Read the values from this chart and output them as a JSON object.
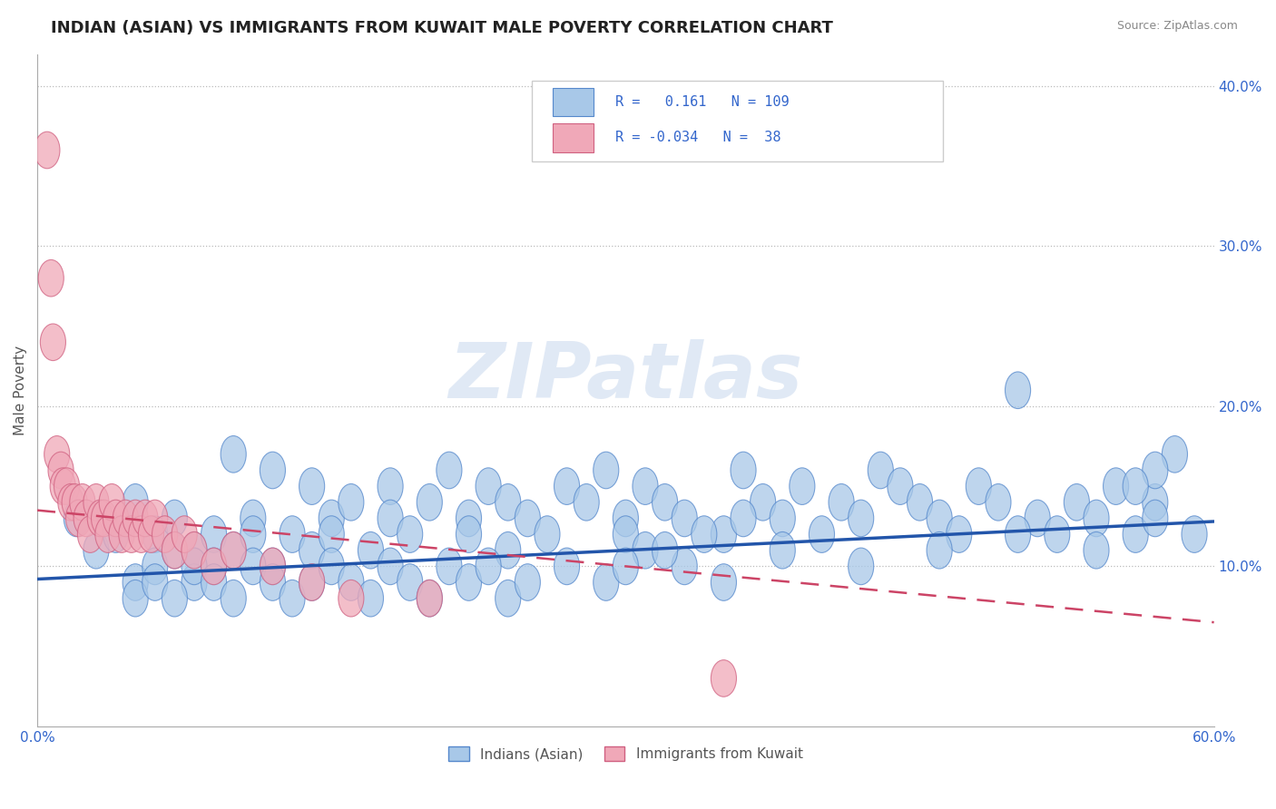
{
  "title": "INDIAN (ASIAN) VS IMMIGRANTS FROM KUWAIT MALE POVERTY CORRELATION CHART",
  "source": "Source: ZipAtlas.com",
  "ylabel": "Male Poverty",
  "xlim": [
    0.0,
    0.6
  ],
  "ylim": [
    0.0,
    0.42
  ],
  "xticks": [
    0.0,
    0.06,
    0.12,
    0.18,
    0.24,
    0.3,
    0.36,
    0.42,
    0.48,
    0.54,
    0.6
  ],
  "ytick_positions": [
    0.1,
    0.2,
    0.3,
    0.4
  ],
  "ytick_labels": [
    "10.0%",
    "20.0%",
    "30.0%",
    "40.0%"
  ],
  "r_indian": 0.161,
  "n_indian": 109,
  "r_kuwait": -0.034,
  "n_kuwait": 38,
  "blue_fill": "#A8C8E8",
  "blue_edge": "#5588CC",
  "pink_fill": "#F0A8B8",
  "pink_edge": "#D06080",
  "blue_line_color": "#2255AA",
  "pink_line_color": "#CC4466",
  "watermark": "ZIPatlas",
  "legend_label_indian": "Indians (Asian)",
  "legend_label_kuwait": "Immigrants from Kuwait",
  "indian_x": [
    0.02,
    0.03,
    0.04,
    0.05,
    0.05,
    0.06,
    0.06,
    0.07,
    0.07,
    0.08,
    0.08,
    0.09,
    0.09,
    0.1,
    0.1,
    0.11,
    0.11,
    0.12,
    0.12,
    0.13,
    0.14,
    0.14,
    0.15,
    0.15,
    0.16,
    0.17,
    0.18,
    0.18,
    0.19,
    0.2,
    0.21,
    0.22,
    0.22,
    0.23,
    0.24,
    0.24,
    0.25,
    0.26,
    0.27,
    0.28,
    0.29,
    0.3,
    0.3,
    0.31,
    0.32,
    0.33,
    0.35,
    0.36,
    0.37,
    0.38,
    0.39,
    0.4,
    0.41,
    0.42,
    0.43,
    0.44,
    0.45,
    0.46,
    0.47,
    0.48,
    0.49,
    0.5,
    0.51,
    0.52,
    0.53,
    0.54,
    0.55,
    0.56,
    0.57,
    0.58,
    0.05,
    0.06,
    0.07,
    0.08,
    0.09,
    0.1,
    0.11,
    0.12,
    0.13,
    0.14,
    0.15,
    0.16,
    0.17,
    0.18,
    0.19,
    0.2,
    0.21,
    0.22,
    0.23,
    0.24,
    0.25,
    0.27,
    0.29,
    0.31,
    0.33,
    0.35,
    0.38,
    0.42,
    0.46,
    0.5,
    0.54,
    0.57,
    0.59,
    0.57,
    0.56,
    0.3,
    0.32,
    0.34,
    0.36
  ],
  "indian_y": [
    0.13,
    0.11,
    0.12,
    0.14,
    0.09,
    0.12,
    0.1,
    0.13,
    0.11,
    0.11,
    0.09,
    0.12,
    0.1,
    0.17,
    0.11,
    0.13,
    0.12,
    0.16,
    0.1,
    0.12,
    0.15,
    0.11,
    0.13,
    0.12,
    0.14,
    0.11,
    0.15,
    0.13,
    0.12,
    0.14,
    0.16,
    0.13,
    0.12,
    0.15,
    0.11,
    0.14,
    0.13,
    0.12,
    0.15,
    0.14,
    0.16,
    0.13,
    0.12,
    0.15,
    0.14,
    0.13,
    0.12,
    0.16,
    0.14,
    0.13,
    0.15,
    0.12,
    0.14,
    0.13,
    0.16,
    0.15,
    0.14,
    0.13,
    0.12,
    0.15,
    0.14,
    0.21,
    0.13,
    0.12,
    0.14,
    0.13,
    0.15,
    0.12,
    0.14,
    0.17,
    0.08,
    0.09,
    0.08,
    0.1,
    0.09,
    0.08,
    0.1,
    0.09,
    0.08,
    0.09,
    0.1,
    0.09,
    0.08,
    0.1,
    0.09,
    0.08,
    0.1,
    0.09,
    0.1,
    0.08,
    0.09,
    0.1,
    0.09,
    0.11,
    0.1,
    0.09,
    0.11,
    0.1,
    0.11,
    0.12,
    0.11,
    0.16,
    0.12,
    0.13,
    0.15,
    0.1,
    0.11,
    0.12,
    0.13
  ],
  "kuwait_x": [
    0.005,
    0.007,
    0.008,
    0.01,
    0.012,
    0.013,
    0.015,
    0.017,
    0.019,
    0.021,
    0.023,
    0.025,
    0.027,
    0.03,
    0.032,
    0.034,
    0.036,
    0.038,
    0.04,
    0.043,
    0.045,
    0.048,
    0.05,
    0.053,
    0.055,
    0.058,
    0.06,
    0.065,
    0.07,
    0.075,
    0.08,
    0.09,
    0.1,
    0.12,
    0.14,
    0.16,
    0.2,
    0.35
  ],
  "kuwait_y": [
    0.36,
    0.28,
    0.24,
    0.17,
    0.16,
    0.15,
    0.15,
    0.14,
    0.14,
    0.13,
    0.14,
    0.13,
    0.12,
    0.14,
    0.13,
    0.13,
    0.12,
    0.14,
    0.13,
    0.12,
    0.13,
    0.12,
    0.13,
    0.12,
    0.13,
    0.12,
    0.13,
    0.12,
    0.11,
    0.12,
    0.11,
    0.1,
    0.11,
    0.1,
    0.09,
    0.08,
    0.08,
    0.03
  ],
  "blue_trend_x": [
    0.0,
    0.6
  ],
  "blue_trend_y": [
    0.092,
    0.128
  ],
  "pink_trend_x": [
    0.0,
    0.6
  ],
  "pink_trend_y": [
    0.135,
    0.065
  ]
}
